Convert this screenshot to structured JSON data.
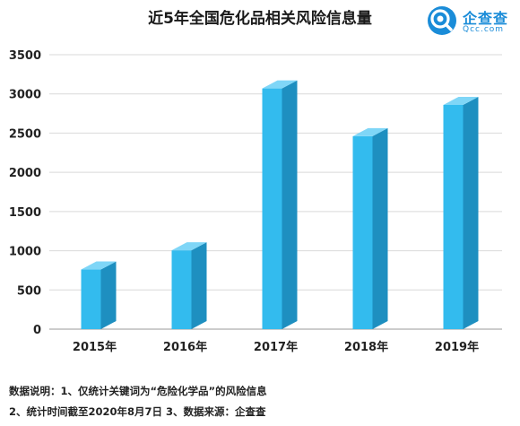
{
  "title": "近5年全国危化品相关风险信息量",
  "logo": {
    "name": "企查查",
    "url": "Qcc.com",
    "brand_color": "#1a8cd8"
  },
  "notes": {
    "line1": "数据说明：1、仅统计关键词为“危险化学品”的风险信息",
    "line2": "2、统计时间截至2020年8月7日  3、数据来源：企查查"
  },
  "chart_data": {
    "type": "bar",
    "style": "3d",
    "categories": [
      "2015年",
      "2016年",
      "2017年",
      "2018年",
      "2019年"
    ],
    "values": [
      760,
      1005,
      3070,
      2460,
      2860
    ],
    "ylim": [
      0,
      3500
    ],
    "yticks": [
      0,
      500,
      1000,
      1500,
      2000,
      2500,
      3000,
      3500
    ],
    "grid": true,
    "colors": {
      "front": "#33bbee",
      "side": "#1e8fc0",
      "top": "#7fd6f7",
      "grid": "#d9d9d9"
    }
  }
}
